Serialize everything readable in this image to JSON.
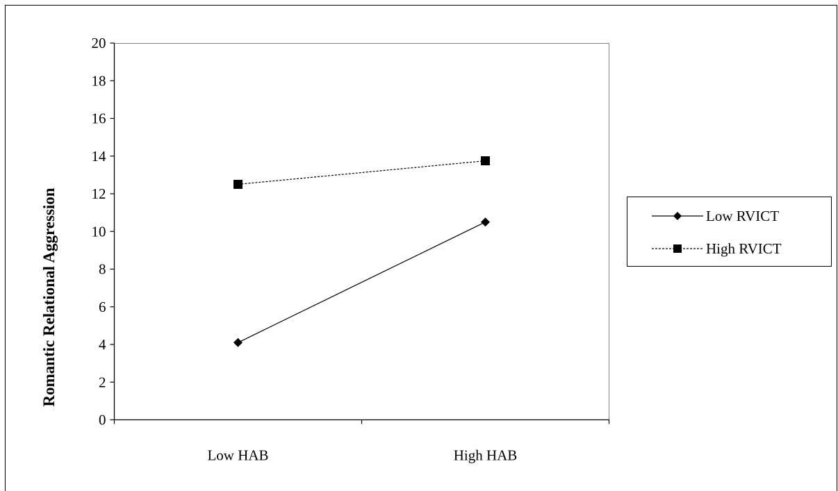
{
  "chart_data": {
    "type": "line",
    "categories": [
      "Low HAB",
      "High HAB"
    ],
    "series": [
      {
        "name": "Low RVICT",
        "values": [
          4.1,
          10.5
        ],
        "marker": "diamond",
        "line": "solid",
        "color": "#000000"
      },
      {
        "name": "High RVICT",
        "values": [
          12.5,
          13.75
        ],
        "marker": "square",
        "line": "dashed",
        "color": "#000000"
      }
    ],
    "title": "",
    "xlabel": "",
    "ylabel": "Romantic Relational Aggression",
    "ylim": [
      0,
      20
    ],
    "yticks": [
      "0",
      "2",
      "4",
      "6",
      "8",
      "10",
      "12",
      "14",
      "16",
      "18",
      "20"
    ],
    "grid": false,
    "legend_position": "right"
  }
}
